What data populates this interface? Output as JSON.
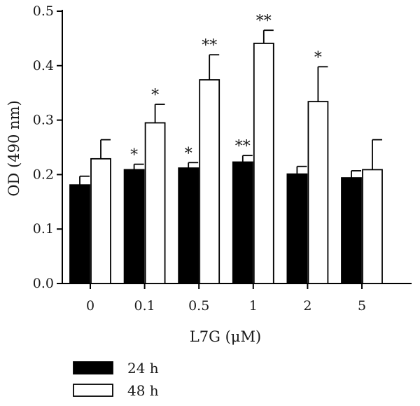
{
  "chart_data": {
    "type": "bar",
    "title": "",
    "xlabel": "L7G (μM)",
    "ylabel": "OD (490 nm)",
    "categories": [
      "0",
      "0.1",
      "0.5",
      "1",
      "2",
      "5"
    ],
    "ylim": [
      0,
      0.5
    ],
    "yticks": [
      "0.0",
      "0.1",
      "0.2",
      "0.3",
      "0.4",
      "0.5"
    ],
    "legend_position": "bottom-left",
    "series": [
      {
        "name": "24 h",
        "color": "#000000",
        "values": [
          0.181,
          0.209,
          0.212,
          0.223,
          0.201,
          0.194
        ],
        "errors": [
          0.016,
          0.01,
          0.01,
          0.012,
          0.014,
          0.013
        ],
        "significance": [
          "",
          "*",
          "*",
          "**",
          "",
          ""
        ]
      },
      {
        "name": "48 h",
        "color": "#ffffff",
        "values": [
          0.229,
          0.295,
          0.374,
          0.441,
          0.334,
          0.209
        ],
        "errors": [
          0.035,
          0.034,
          0.046,
          0.024,
          0.064,
          0.055
        ],
        "significance": [
          "",
          "*",
          "**",
          "**",
          "*",
          ""
        ]
      }
    ]
  }
}
